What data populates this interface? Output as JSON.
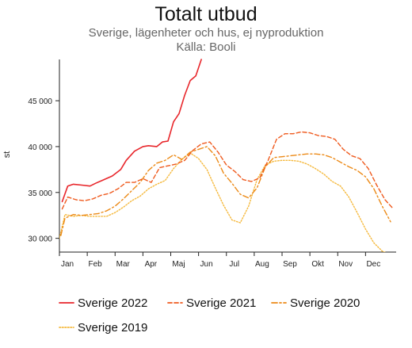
{
  "chart_data": {
    "type": "line",
    "title": "Totalt utbud",
    "subtitle": "Sverige, lägenheter och hus, ej nyproduktion",
    "source": "Källa: Booli",
    "ylabel": "st",
    "xlabel": "",
    "ylim": [
      28500,
      49500
    ],
    "xlim": [
      0,
      12.1
    ],
    "y_ticks": [
      30000,
      35000,
      40000,
      45000
    ],
    "y_tick_labels": [
      "30 000",
      "35 000",
      "40 000",
      "45 000"
    ],
    "x_tick_labels": [
      "Jan",
      "Feb",
      "Mar",
      "Apr",
      "Maj",
      "Jun",
      "Jul",
      "Aug",
      "Sep",
      "Okt",
      "Nov",
      "Dec"
    ],
    "grid": false,
    "legend_position": "bottom",
    "series": [
      {
        "name": "Sverige 2022",
        "color": "#e8262b",
        "dash": "solid",
        "x": [
          0.1,
          0.3,
          0.5,
          0.8,
          1.1,
          1.3,
          1.6,
          1.9,
          2.2,
          2.4,
          2.7,
          3.0,
          3.2,
          3.5,
          3.7,
          3.9,
          4.1,
          4.3,
          4.5,
          4.7,
          4.9,
          5.1
        ],
        "y": [
          34000,
          35700,
          35900,
          35800,
          35700,
          36000,
          36400,
          36800,
          37500,
          38500,
          39500,
          40000,
          40100,
          40000,
          40500,
          40600,
          42700,
          43600,
          45600,
          47200,
          47700,
          49500
        ]
      },
      {
        "name": "Sverige 2021",
        "color": "#ef5a1e",
        "dash": "dashed",
        "x": [
          0.1,
          0.3,
          0.6,
          0.9,
          1.2,
          1.5,
          1.8,
          2.1,
          2.4,
          2.7,
          3.0,
          3.3,
          3.6,
          3.9,
          4.2,
          4.5,
          4.8,
          5.1,
          5.4,
          5.7,
          6.0,
          6.3,
          6.6,
          6.9,
          7.2,
          7.5,
          7.8,
          8.1,
          8.4,
          8.7,
          9.0,
          9.3,
          9.6,
          9.9,
          10.2,
          10.5,
          10.8,
          11.1,
          11.4,
          11.7,
          12.0
        ],
        "y": [
          33200,
          34500,
          34200,
          34100,
          34300,
          34700,
          34900,
          35400,
          36100,
          36100,
          36500,
          36100,
          37700,
          37900,
          38100,
          38500,
          39600,
          40300,
          40500,
          39400,
          38000,
          37300,
          36400,
          36200,
          36600,
          38500,
          40800,
          41400,
          41400,
          41600,
          41500,
          41200,
          41100,
          40800,
          39700,
          39000,
          38700,
          37600,
          35800,
          34200,
          33200
        ]
      },
      {
        "name": "Sverige 2020",
        "color": "#ec8a17",
        "dash": "dashdot",
        "x": [
          0.05,
          0.2,
          0.5,
          0.8,
          1.1,
          1.4,
          1.7,
          2.0,
          2.3,
          2.6,
          2.9,
          3.2,
          3.5,
          3.8,
          4.1,
          4.4,
          4.7,
          5.0,
          5.3,
          5.6,
          5.9,
          6.2,
          6.5,
          6.8,
          7.1,
          7.4,
          7.7,
          8.0,
          8.3,
          8.6,
          8.9,
          9.2,
          9.5,
          9.8,
          10.1,
          10.4,
          10.7,
          11.0,
          11.3,
          11.6,
          11.9
        ],
        "y": [
          30300,
          32200,
          32600,
          32500,
          32600,
          32700,
          33000,
          33500,
          34300,
          35200,
          36100,
          37400,
          38200,
          38500,
          39100,
          38600,
          39400,
          39700,
          40000,
          39000,
          37100,
          36000,
          34800,
          34400,
          35500,
          37800,
          38800,
          38900,
          39000,
          39100,
          39200,
          39200,
          39100,
          38800,
          38300,
          37800,
          37400,
          36700,
          35400,
          33500,
          31800
        ]
      },
      {
        "name": "Sverige 2019",
        "color": "#f5b93d",
        "dash": "dotted",
        "x": [
          0.0,
          0.2,
          0.5,
          0.8,
          1.1,
          1.4,
          1.7,
          2.0,
          2.3,
          2.6,
          2.9,
          3.2,
          3.5,
          3.8,
          4.1,
          4.4,
          4.7,
          5.0,
          5.3,
          5.6,
          5.9,
          6.2,
          6.5,
          6.8,
          7.1,
          7.4,
          7.7,
          8.0,
          8.3,
          8.6,
          8.9,
          9.2,
          9.5,
          9.8,
          10.1,
          10.4,
          10.7,
          11.0,
          11.3,
          11.6,
          11.9
        ],
        "y": [
          30000,
          32600,
          32400,
          32500,
          32400,
          32400,
          32400,
          32800,
          33400,
          34100,
          34600,
          35400,
          35900,
          36300,
          37600,
          38600,
          39300,
          38700,
          37500,
          35500,
          33600,
          32000,
          31700,
          33500,
          36400,
          38000,
          38400,
          38500,
          38500,
          38400,
          38100,
          37600,
          37000,
          36200,
          35700,
          34500,
          32800,
          31000,
          29500,
          28600,
          28200
        ]
      }
    ]
  }
}
